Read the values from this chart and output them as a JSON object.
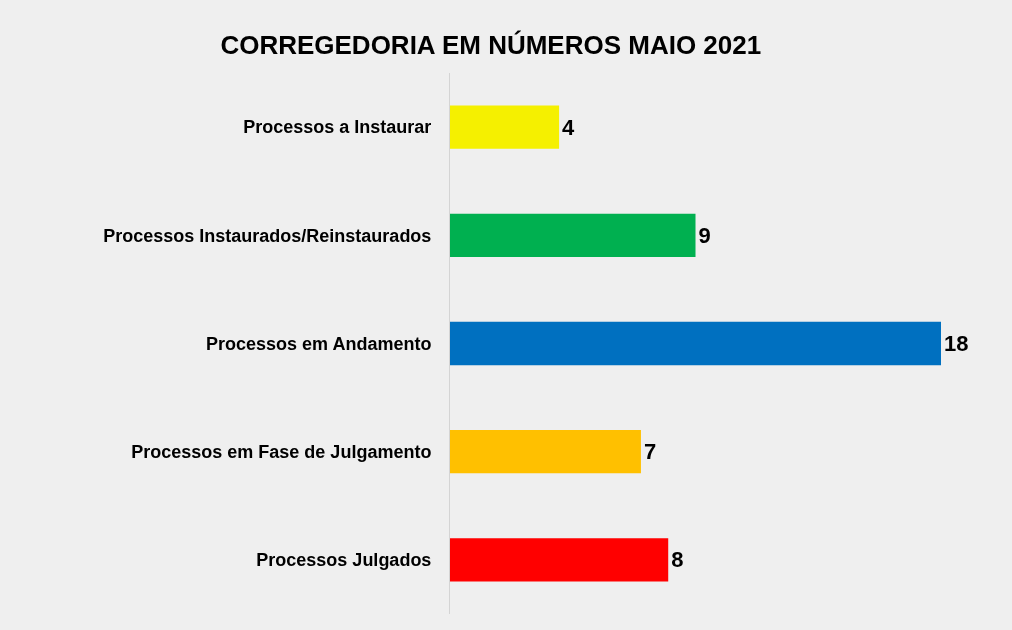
{
  "chart_data": {
    "type": "bar",
    "orientation": "horizontal",
    "title": "CORREGEDORIA EM NÚMEROS MAIO 2021",
    "categories": [
      "Processos a Instaurar",
      "Processos Instaurados/Reinstaurados",
      "Processos em Andamento",
      "Processos em Fase de Julgamento",
      "Processos Julgados"
    ],
    "values": [
      4,
      9,
      18,
      7,
      8
    ],
    "colors": [
      "#f5f000",
      "#00b050",
      "#0070c0",
      "#ffc000",
      "#ff0000"
    ],
    "xlim": [
      0,
      18
    ],
    "data_labels": true,
    "tick_labels": "y"
  }
}
